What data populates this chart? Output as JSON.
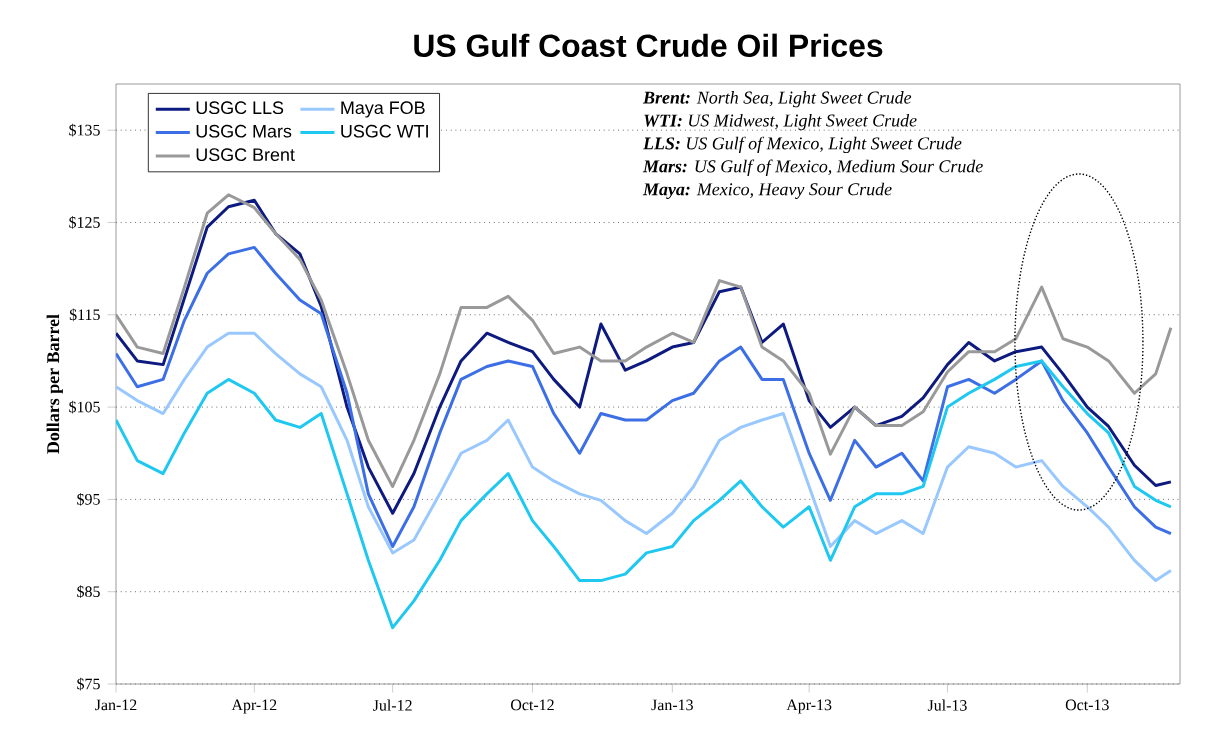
{
  "chart_data": {
    "type": "line",
    "title": "US Gulf Coast Crude Oil Prices",
    "ylabel": "Dollars per Barrel",
    "x": [
      "2012-01-01",
      "2012-01-15",
      "2012-02-01",
      "2012-02-15",
      "2012-03-01",
      "2012-03-15",
      "2012-04-01",
      "2012-04-15",
      "2012-05-01",
      "2012-05-15",
      "2012-06-01",
      "2012-06-15",
      "2012-07-01",
      "2012-07-15",
      "2012-08-01",
      "2012-08-15",
      "2012-09-01",
      "2012-09-15",
      "2012-10-01",
      "2012-10-15",
      "2012-11-01",
      "2012-11-15",
      "2012-12-01",
      "2012-12-15",
      "2013-01-01",
      "2013-01-15",
      "2013-02-01",
      "2013-02-15",
      "2013-03-01",
      "2013-03-15",
      "2013-04-01",
      "2013-04-15",
      "2013-05-01",
      "2013-05-15",
      "2013-06-01",
      "2013-06-15",
      "2013-07-01",
      "2013-07-15",
      "2013-08-01",
      "2013-08-15",
      "2013-09-01",
      "2013-09-15",
      "2013-10-01",
      "2013-10-15",
      "2013-11-01",
      "2013-11-15",
      "2013-11-25"
    ],
    "series": [
      {
        "name": "USGC LLS",
        "color": "#0d1a80",
        "values": [
          113,
          110,
          109.6,
          116.8,
          124.5,
          126.7,
          127.4,
          123.8,
          121.6,
          115.9,
          105,
          98.5,
          93.5,
          97.8,
          105,
          110,
          113,
          112,
          111,
          108,
          105,
          114,
          109,
          110,
          111.5,
          112,
          117.5,
          118,
          112,
          114,
          105.7,
          102.8,
          105,
          103,
          104,
          106,
          109.6,
          112,
          110,
          111,
          111.5,
          108.6,
          105,
          102.9,
          98.7,
          96.5,
          96.9
        ]
      },
      {
        "name": "Maya FOB",
        "color": "#99c8ff",
        "values": [
          107.2,
          105.7,
          104.3,
          108,
          111.5,
          113,
          113,
          110.8,
          108.6,
          107.2,
          101.4,
          94.2,
          89.2,
          90.6,
          95.6,
          100,
          101.4,
          103.6,
          98.5,
          97,
          95.6,
          94.9,
          92.7,
          91.3,
          93.5,
          96.4,
          101.4,
          102.8,
          103.6,
          104.3,
          96.4,
          89.9,
          92.7,
          91.3,
          92.7,
          91.3,
          98.5,
          100.7,
          100,
          98.5,
          99.2,
          96.4,
          94.2,
          92,
          88.4,
          86.2,
          87.3
        ]
      },
      {
        "name": "USGC Mars",
        "color": "#3c6ee6",
        "values": [
          110.8,
          107.2,
          108,
          114.4,
          119.5,
          121.6,
          122.3,
          119.5,
          116.6,
          115.1,
          106.5,
          95.6,
          89.9,
          94.2,
          102.2,
          108,
          109.4,
          110,
          109.4,
          104.3,
          100,
          104.3,
          103.6,
          103.6,
          105.7,
          106.5,
          110,
          111.5,
          108,
          108,
          100,
          94.9,
          101.4,
          98.5,
          100,
          97,
          107.2,
          108,
          106.5,
          108,
          110,
          105.7,
          102.2,
          98.5,
          94.2,
          92,
          91.3
        ]
      },
      {
        "name": "USGC WTI",
        "color": "#1ec8f0",
        "values": [
          103.6,
          99.2,
          97.8,
          102.2,
          106.5,
          108,
          106.5,
          103.6,
          102.8,
          104.3,
          95.6,
          88.4,
          81.1,
          84,
          88.4,
          92.7,
          95.6,
          97.8,
          92.7,
          89.9,
          86.2,
          86.2,
          86.9,
          89.2,
          89.9,
          92.7,
          94.9,
          97,
          94.2,
          92,
          94.2,
          88.4,
          94.2,
          95.6,
          95.6,
          96.4,
          105,
          106.5,
          108,
          109.4,
          110,
          107.2,
          104.3,
          102.2,
          96.4,
          94.9,
          94.2
        ]
      },
      {
        "name": "USGC Brent",
        "color": "#999999",
        "values": [
          115,
          111.5,
          110.8,
          118,
          126,
          128,
          126.6,
          123.8,
          121,
          116.6,
          108.6,
          101.4,
          96.4,
          101.4,
          108.6,
          115.8,
          115.8,
          117,
          114.4,
          110.8,
          111.5,
          110,
          110,
          111.5,
          113,
          112,
          118.7,
          118,
          111.5,
          110,
          106.5,
          99.9,
          105,
          103,
          103,
          104.5,
          108.8,
          111,
          111,
          112.4,
          118,
          112.4,
          111.5,
          110,
          106.5,
          108.6,
          113.6
        ]
      }
    ],
    "xlim": [
      "2012-01-01",
      "2013-12-01"
    ],
    "xticks": [
      {
        "value": "2012-01-01",
        "label": "Jan-12"
      },
      {
        "value": "2012-04-01",
        "label": "Apr-12"
      },
      {
        "value": "2012-07-01",
        "label": "Jul-12"
      },
      {
        "value": "2012-10-01",
        "label": "Oct-12"
      },
      {
        "value": "2013-01-01",
        "label": "Jan-13"
      },
      {
        "value": "2013-04-01",
        "label": "Apr-13"
      },
      {
        "value": "2013-07-01",
        "label": "Jul-13"
      },
      {
        "value": "2013-10-01",
        "label": "Oct-13"
      }
    ],
    "ylim": [
      75,
      140
    ],
    "yticks": [
      {
        "value": 75,
        "label": "$75"
      },
      {
        "value": 85,
        "label": "$85"
      },
      {
        "value": 95,
        "label": "$95"
      },
      {
        "value": 105,
        "label": "$105"
      },
      {
        "value": 115,
        "label": "$115"
      },
      {
        "value": 125,
        "label": "$125"
      },
      {
        "value": 135,
        "label": "$135"
      }
    ],
    "grid": "y",
    "legend": "top left",
    "line_style": "solid",
    "marker": "none",
    "annotations": [
      "**Brent:** North Sea, Light Sweet Crude",
      "**WTI:** US Midwest, Light Sweet Crude",
      "**LLS:** US Gulf of Mexico, Light Sweet Crude",
      "**Mars:** US Gulf of Mexico, Medium Sour Crude",
      "**Maya:** Mexico, Heavy Sour Crude"
    ]
  }
}
